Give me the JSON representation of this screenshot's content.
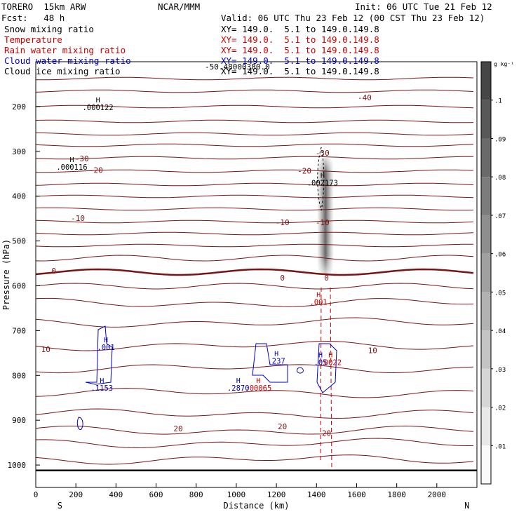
{
  "header": {
    "model": "TORERO  15km ARW",
    "center": "NCAR/MMM",
    "init": "Init: 06 UTC Tue 21 Feb 12",
    "fcst": "Fcst:   48 h",
    "valid": "Valid: 06 UTC Thu 23 Feb 12 (00 CST Thu 23 Feb 12)",
    "fields": [
      {
        "name": "Snow mixing ratio",
        "xy": "XY= 149.0.  5.1 to 149.0.149.8",
        "color": "#000000"
      },
      {
        "name": "Temperature",
        "xy": "XY= 149.0.  5.1 to 149.0.149.8",
        "color": "#cc0000"
      },
      {
        "name": "Rain water mixing ratio",
        "xy": "XY= 149.0.  5.1 to 149.0.149.8",
        "color": "#cc0000"
      },
      {
        "name": "Cloud water mixing ratio",
        "xy": "XY= 149.0.  5.1 to 149.0.149.8",
        "color": "#0000cc"
      },
      {
        "name": "Cloud ice mixing ratio",
        "xy": "XY= 149.0.  5.1 to 149.0.149.8",
        "color": "#000000"
      }
    ],
    "overlap_text": "-50.48000380.0"
  },
  "chart_data": {
    "type": "contour",
    "xlabel": "Distance (km)",
    "ylabel": "Pressure (hPa)",
    "xlim": [
      0,
      2200
    ],
    "ylim": [
      1050,
      100
    ],
    "x_ticks": [
      0,
      200,
      400,
      600,
      800,
      1000,
      1200,
      1400,
      1600,
      1800,
      2000
    ],
    "y_ticks": [
      200,
      300,
      400,
      500,
      600,
      700,
      800,
      900,
      1000
    ],
    "x_end_labels": {
      "left": "S",
      "right": "N"
    },
    "surface_pressure": 1012,
    "temperature_labels": [
      {
        "text": "-40",
        "x": 1640,
        "p": 186
      },
      {
        "text": "-30",
        "x": 230,
        "p": 322
      },
      {
        "text": "-30",
        "x": 1430,
        "p": 310
      },
      {
        "text": "-20",
        "x": 300,
        "p": 348
      },
      {
        "text": "-20",
        "x": 1340,
        "p": 350
      },
      {
        "text": "-10",
        "x": 210,
        "p": 455
      },
      {
        "text": "-10",
        "x": 1230,
        "p": 465
      },
      {
        "text": "-10",
        "x": 1430,
        "p": 465
      },
      {
        "text": "0",
        "x": 90,
        "p": 573
      },
      {
        "text": "0",
        "x": 1230,
        "p": 588
      },
      {
        "text": "0",
        "x": 1450,
        "p": 588
      },
      {
        "text": "10",
        "x": 50,
        "p": 748
      },
      {
        "text": "10",
        "x": 1680,
        "p": 750
      },
      {
        "text": "20",
        "x": 710,
        "p": 925
      },
      {
        "text": "20",
        "x": 1230,
        "p": 920
      },
      {
        "text": "20",
        "x": 1450,
        "p": 935
      }
    ],
    "maxima_labels": [
      {
        "text": ".000122",
        "x": 310,
        "p": 208,
        "color": "#000000"
      },
      {
        "text": ".000116",
        "x": 180,
        "p": 341,
        "color": "#000000"
      },
      {
        "text": ".002173",
        "x": 1430,
        "p": 376,
        "color": "#000000"
      },
      {
        "text": ".001",
        "x": 350,
        "p": 743,
        "color": "#0000cc"
      },
      {
        "text": ".1153",
        "x": 330,
        "p": 834,
        "color": "#0000cc"
      },
      {
        "text": ".237",
        "x": 1200,
        "p": 774,
        "color": "#0000cc"
      },
      {
        "text": ".2870",
        "x": 1010,
        "p": 834,
        "color": "#0000cc"
      },
      {
        "text": ".00065",
        "x": 1110,
        "p": 834,
        "color": "#cc0000"
      },
      {
        "text": ".001",
        "x": 1410,
        "p": 642,
        "color": "#cc0000"
      },
      {
        "text": ".05",
        "x": 1420,
        "p": 777,
        "color": "#0000cc"
      },
      {
        "text": ".0022",
        "x": 1470,
        "p": 777,
        "color": "#cc0000"
      }
    ],
    "colorbar": {
      "unit": "g kg⁻¹",
      "ticks": [
        ".1",
        ".09",
        ".08",
        ".07",
        ".06",
        ".05",
        ".04",
        ".03",
        ".02",
        ".01"
      ]
    },
    "grid": false,
    "legend": "header"
  }
}
